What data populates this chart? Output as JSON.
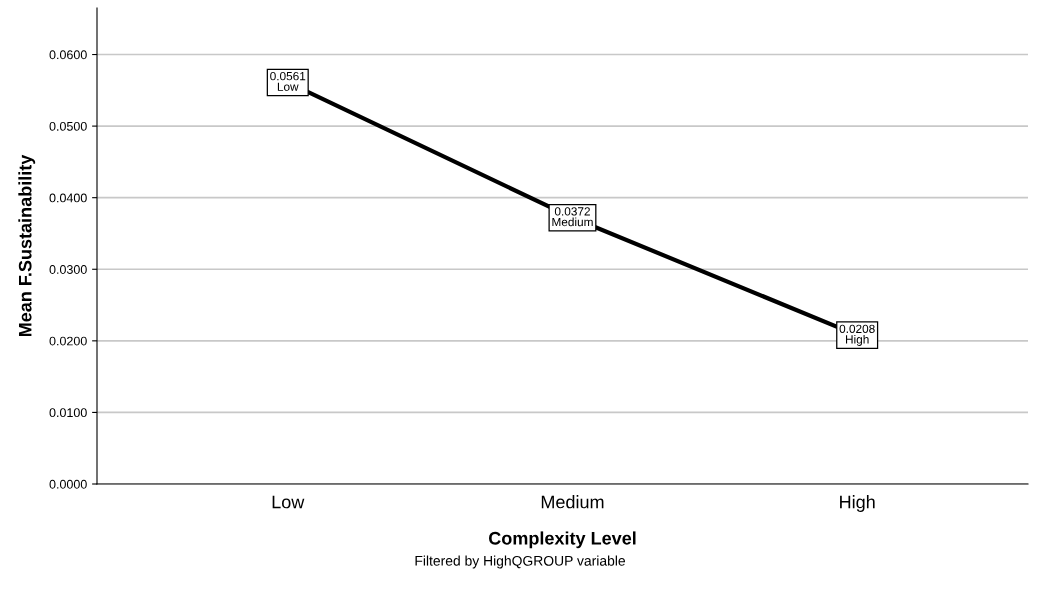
{
  "chart_data": {
    "type": "line",
    "xlabel": "Complexity Level",
    "ylabel": "Mean F.Sustainability",
    "categories": [
      "Low",
      "Medium",
      "High"
    ],
    "series": [
      {
        "color": "#000000",
        "values": [
          0.0561,
          0.0372,
          0.0208
        ]
      }
    ],
    "value_labels": [
      "0.0561\nLow",
      "0.0372\nMedium",
      "0.0208\nHigh"
    ],
    "ylim": [
      0,
      0.0665
    ],
    "yticks": [
      {
        "value": 0,
        "label": "0.0000"
      },
      {
        "value": 0.01,
        "label": "0.0100"
      },
      {
        "value": 0.02,
        "label": "0.0200"
      },
      {
        "value": 0.03,
        "label": "0.0300"
      },
      {
        "value": 0.04,
        "label": "0.0400"
      },
      {
        "value": 0.05,
        "label": "0.0500"
      },
      {
        "value": 0.06,
        "label": "0.0600"
      }
    ],
    "grid": "y",
    "line_style": "solid",
    "annotations": [
      "Filtered by HighQGROUP variable"
    ]
  }
}
